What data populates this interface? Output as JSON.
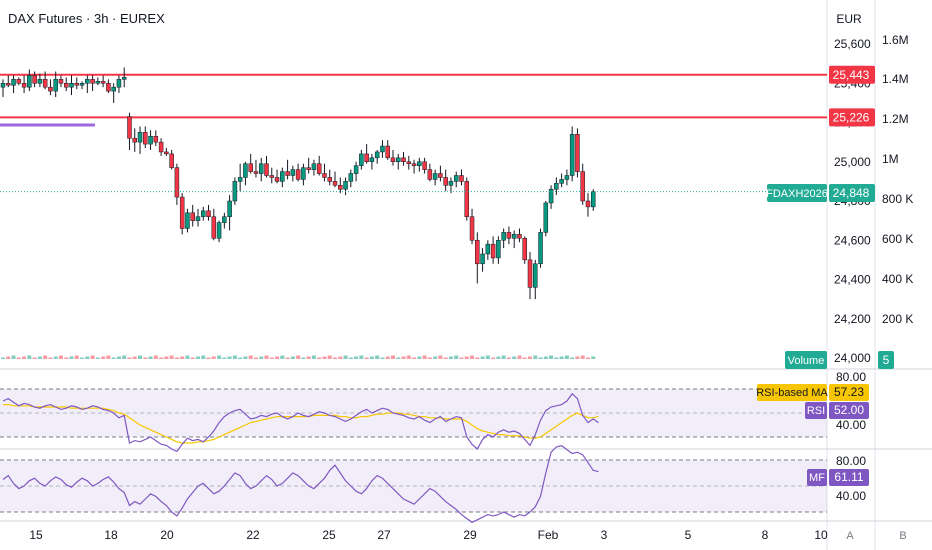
{
  "header": {
    "title": "DAX Futures · 3h · EUREX"
  },
  "price_axis": {
    "currency": "EUR",
    "ticks": [
      "25,600",
      "25,400",
      "25,200",
      "25,000",
      "24,800",
      "24,600",
      "24,400",
      "24,200",
      "24,000"
    ]
  },
  "volume_axis": {
    "ticks": [
      "1.6M",
      "1.4M",
      "1.2M",
      "1M",
      "800 K",
      "600 K",
      "400 K",
      "200 K"
    ]
  },
  "levels": [
    {
      "value": 25443,
      "label": "25,443",
      "color": "#f23645"
    },
    {
      "value": 25226,
      "label": "25,226",
      "color": "#f23645"
    }
  ],
  "last_price": {
    "symbol": "FDAXH2026",
    "value": 24848,
    "label": "24,848",
    "color": "#22ab94"
  },
  "volume_badge": {
    "label": "Volume",
    "value": "5",
    "color": "#22ab94"
  },
  "rsi_panel": {
    "ticks": [
      "80.00",
      "40.00"
    ],
    "ma_label": "RSI-based MA",
    "ma_value": "57.23",
    "ma_color": "#f7c600",
    "rsi_label": "RSI",
    "rsi_value": "52.00",
    "rsi_color": "#7e57c2"
  },
  "mf_panel": {
    "ticks": [
      "80.00",
      "40.00"
    ],
    "label": "MF",
    "value": "61.11",
    "color": "#7e57c2"
  },
  "time_axis": {
    "labels": [
      "15",
      "18",
      "20",
      "22",
      "25",
      "27",
      "29",
      "Feb",
      "3",
      "5",
      "8",
      "10"
    ],
    "buttons": [
      "A",
      "B"
    ]
  },
  "colors": {
    "up": "#089981",
    "down": "#f23645",
    "purple_line": "#9c6ade"
  },
  "chart_data": {
    "type": "candlestick",
    "title": "DAX Futures · 3h · EUREX",
    "y_unit": "EUR",
    "ylim": [
      24000,
      25700
    ],
    "x_labels": [
      "15",
      "18",
      "20",
      "22",
      "25",
      "27",
      "29",
      "Feb",
      "3",
      "5",
      "8",
      "10"
    ],
    "horizontal_levels": [
      25443,
      25226
    ],
    "last_price": 24848,
    "ohlc": [
      [
        25380,
        25420,
        25330,
        25400
      ],
      [
        25400,
        25440,
        25380,
        25390
      ],
      [
        25390,
        25440,
        25350,
        25420
      ],
      [
        25420,
        25430,
        25390,
        25400
      ],
      [
        25400,
        25440,
        25350,
        25380
      ],
      [
        25380,
        25470,
        25360,
        25440
      ],
      [
        25440,
        25460,
        25380,
        25400
      ],
      [
        25400,
        25450,
        25380,
        25420
      ],
      [
        25420,
        25460,
        25370,
        25380
      ],
      [
        25380,
        25420,
        25340,
        25360
      ],
      [
        25360,
        25460,
        25330,
        25420
      ],
      [
        25420,
        25440,
        25380,
        25400
      ],
      [
        25400,
        25430,
        25360,
        25380
      ],
      [
        25380,
        25440,
        25340,
        25400
      ],
      [
        25400,
        25430,
        25370,
        25390
      ],
      [
        25390,
        25410,
        25370,
        25400
      ],
      [
        25400,
        25440,
        25350,
        25420
      ],
      [
        25420,
        25440,
        25360,
        25400
      ],
      [
        25400,
        25430,
        25390,
        25410
      ],
      [
        25410,
        25440,
        25380,
        25400
      ],
      [
        25400,
        25420,
        25350,
        25360
      ],
      [
        25360,
        25400,
        25300,
        25380
      ],
      [
        25380,
        25440,
        25350,
        25420
      ],
      [
        25420,
        25480,
        25380,
        25430
      ],
      [
        25230,
        25250,
        25060,
        25120
      ],
      [
        25120,
        25170,
        25050,
        25100
      ],
      [
        25100,
        25180,
        25040,
        25150
      ],
      [
        25150,
        25180,
        25070,
        25090
      ],
      [
        25090,
        25160,
        25060,
        25130
      ],
      [
        25130,
        25160,
        25080,
        25100
      ],
      [
        25100,
        25120,
        25030,
        25050
      ],
      [
        25050,
        25070,
        25030,
        25040
      ],
      [
        25040,
        25060,
        24960,
        24970
      ],
      [
        24970,
        24990,
        24780,
        24820
      ],
      [
        24820,
        24840,
        24630,
        24660
      ],
      [
        24660,
        24760,
        24640,
        24740
      ],
      [
        24740,
        24780,
        24670,
        24700
      ],
      [
        24700,
        24760,
        24670,
        24720
      ],
      [
        24720,
        24770,
        24700,
        24750
      ],
      [
        24750,
        24780,
        24700,
        24720
      ],
      [
        24720,
        24760,
        24600,
        24610
      ],
      [
        24610,
        24700,
        24590,
        24690
      ],
      [
        24690,
        24740,
        24660,
        24720
      ],
      [
        24720,
        24830,
        24650,
        24800
      ],
      [
        24800,
        24920,
        24780,
        24900
      ],
      [
        24900,
        24990,
        24850,
        24920
      ],
      [
        24920,
        25000,
        24880,
        24990
      ],
      [
        24990,
        25040,
        24940,
        24950
      ],
      [
        24950,
        25010,
        24920,
        24940
      ],
      [
        24940,
        25020,
        24900,
        24990
      ],
      [
        24990,
        25030,
        24920,
        24930
      ],
      [
        24930,
        24970,
        24890,
        24920
      ],
      [
        24920,
        24960,
        24890,
        24900
      ],
      [
        24900,
        24970,
        24870,
        24950
      ],
      [
        24950,
        25010,
        24910,
        24930
      ],
      [
        24930,
        24980,
        24900,
        24960
      ],
      [
        24960,
        24990,
        24900,
        24910
      ],
      [
        24910,
        24990,
        24880,
        24970
      ],
      [
        24970,
        25020,
        24940,
        24960
      ],
      [
        24960,
        25010,
        24930,
        24990
      ],
      [
        24990,
        25030,
        24930,
        24940
      ],
      [
        24940,
        24990,
        24900,
        24920
      ],
      [
        24920,
        24960,
        24880,
        24900
      ],
      [
        24900,
        24950,
        24870,
        24880
      ],
      [
        24880,
        24920,
        24840,
        24860
      ],
      [
        24860,
        24920,
        24830,
        24900
      ],
      [
        24900,
        24960,
        24870,
        24940
      ],
      [
        24940,
        25000,
        24900,
        24980
      ],
      [
        24980,
        25060,
        24960,
        25040
      ],
      [
        25040,
        25090,
        24990,
        25000
      ],
      [
        25000,
        25040,
        24960,
        25020
      ],
      [
        25020,
        25060,
        24990,
        25050
      ],
      [
        25050,
        25110,
        25020,
        25080
      ],
      [
        25080,
        25110,
        25010,
        25020
      ],
      [
        25020,
        25060,
        24980,
        25000
      ],
      [
        25000,
        25040,
        24960,
        25020
      ],
      [
        25020,
        25050,
        24980,
        25000
      ],
      [
        25000,
        25030,
        24960,
        24990
      ],
      [
        24990,
        25010,
        24940,
        24980
      ],
      [
        24980,
        25020,
        24950,
        25000
      ],
      [
        25000,
        25020,
        24940,
        24960
      ],
      [
        24960,
        24990,
        24900,
        24910
      ],
      [
        24910,
        24960,
        24880,
        24940
      ],
      [
        24940,
        24980,
        24900,
        24920
      ],
      [
        24920,
        24960,
        24850,
        24880
      ],
      [
        24880,
        24920,
        24840,
        24900
      ],
      [
        24900,
        24950,
        24870,
        24930
      ],
      [
        24930,
        24960,
        24880,
        24900
      ],
      [
        24900,
        24920,
        24700,
        24720
      ],
      [
        24720,
        24760,
        24580,
        24600
      ],
      [
        24600,
        24640,
        24380,
        24480
      ],
      [
        24480,
        24560,
        24440,
        24530
      ],
      [
        24530,
        24600,
        24500,
        24580
      ],
      [
        24580,
        24620,
        24480,
        24510
      ],
      [
        24510,
        24620,
        24480,
        24600
      ],
      [
        24600,
        24660,
        24560,
        24640
      ],
      [
        24640,
        24670,
        24580,
        24610
      ],
      [
        24610,
        24650,
        24560,
        24630
      ],
      [
        24630,
        24660,
        24590,
        24610
      ],
      [
        24610,
        24620,
        24480,
        24500
      ],
      [
        24500,
        24540,
        24300,
        24360
      ],
      [
        24360,
        24500,
        24300,
        24480
      ],
      [
        24480,
        24660,
        24460,
        24640
      ],
      [
        24640,
        24800,
        24620,
        24790
      ],
      [
        24790,
        24880,
        24760,
        24860
      ],
      [
        24860,
        24920,
        24830,
        24890
      ],
      [
        24890,
        24940,
        24870,
        24910
      ],
      [
        24910,
        24960,
        24880,
        24930
      ],
      [
        24930,
        25180,
        24900,
        25140
      ],
      [
        25140,
        25170,
        24920,
        24950
      ],
      [
        24950,
        24990,
        24780,
        24800
      ],
      [
        24800,
        24840,
        24720,
        24770
      ],
      [
        24770,
        24860,
        24750,
        24848
      ]
    ],
    "rsi": {
      "name": "RSI",
      "last": 52.0,
      "ma_last": 57.23,
      "ticks": [
        80,
        40
      ],
      "values": [
        70,
        72,
        69,
        66,
        68,
        67,
        65,
        64,
        66,
        67,
        65,
        63,
        64,
        66,
        65,
        63,
        64,
        66,
        65,
        63,
        62,
        60,
        56,
        58,
        35,
        37,
        36,
        38,
        40,
        37,
        34,
        33,
        30,
        28,
        34,
        39,
        37,
        38,
        36,
        40,
        45,
        52,
        57,
        60,
        62,
        63,
        59,
        55,
        56,
        58,
        57,
        59,
        60,
        57,
        55,
        57,
        60,
        58,
        57,
        59,
        61,
        60,
        58,
        57,
        55,
        53,
        55,
        58,
        61,
        63,
        60,
        62,
        64,
        63,
        60,
        59,
        58,
        56,
        55,
        57,
        54,
        52,
        55,
        57,
        53,
        55,
        57,
        56,
        40,
        34,
        30,
        38,
        42,
        40,
        44,
        46,
        44,
        45,
        43,
        38,
        33,
        42,
        54,
        62,
        65,
        66,
        67,
        70,
        76,
        72,
        58,
        52,
        55,
        52
      ],
      "ma_values": [
        67,
        67,
        66,
        66,
        66,
        66,
        65,
        65,
        65,
        65,
        65,
        65,
        65,
        64,
        64,
        64,
        64,
        64,
        64,
        64,
        63,
        62,
        60,
        59,
        56,
        53,
        50,
        48,
        46,
        44,
        42,
        40,
        38,
        36,
        35,
        35,
        35,
        36,
        36,
        37,
        38,
        40,
        42,
        44,
        46,
        48,
        50,
        52,
        53,
        54,
        55,
        56,
        57,
        57,
        57,
        57,
        57,
        57,
        57,
        58,
        58,
        58,
        58,
        58,
        57,
        57,
        56,
        56,
        57,
        57,
        58,
        59,
        59,
        60,
        60,
        60,
        59,
        59,
        58,
        57,
        57,
        56,
        56,
        56,
        55,
        55,
        55,
        55,
        53,
        50,
        47,
        45,
        44,
        43,
        42,
        42,
        41,
        41,
        41,
        40,
        39,
        39,
        40,
        43,
        46,
        49,
        52,
        55,
        58,
        60,
        58,
        56,
        56,
        57.23
      ]
    },
    "mf": {
      "name": "MF",
      "last": 61.11,
      "ticks": [
        80,
        40
      ],
      "values": [
        55,
        58,
        52,
        48,
        50,
        54,
        56,
        52,
        50,
        54,
        57,
        55,
        51,
        49,
        53,
        56,
        54,
        50,
        52,
        55,
        57,
        53,
        48,
        45,
        35,
        38,
        36,
        40,
        44,
        42,
        38,
        35,
        30,
        27,
        33,
        40,
        45,
        50,
        52,
        48,
        44,
        46,
        50,
        55,
        60,
        58,
        52,
        48,
        50,
        54,
        58,
        55,
        50,
        52,
        56,
        60,
        58,
        54,
        50,
        48,
        52,
        56,
        62,
        66,
        60,
        54,
        50,
        46,
        44,
        48,
        54,
        58,
        56,
        52,
        48,
        44,
        40,
        38,
        36,
        40,
        44,
        48,
        46,
        42,
        38,
        35,
        32,
        28,
        25,
        22,
        24,
        26,
        28,
        27,
        28,
        30,
        28,
        26,
        28,
        27,
        30,
        34,
        42,
        60,
        76,
        80,
        81,
        78,
        75,
        76,
        74,
        68,
        62,
        61.11
      ]
    }
  }
}
